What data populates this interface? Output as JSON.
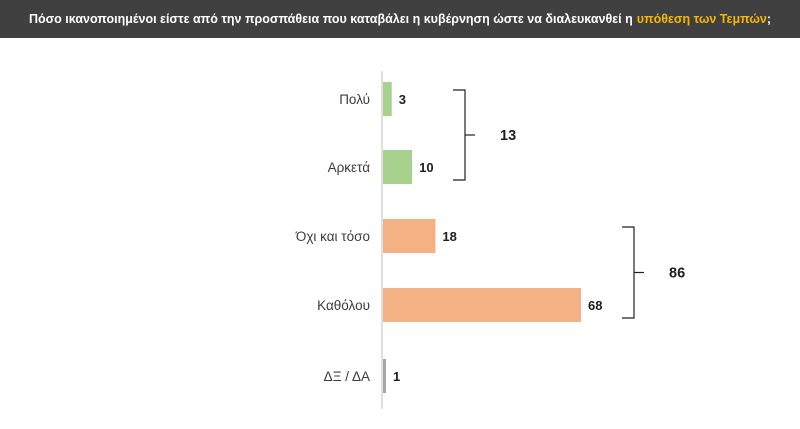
{
  "header": {
    "title_main": "Πόσο ικανοποιημένοι είστε από την προσπάθεια που καταβάλει η κυβέρνηση ώστε να διαλευκανθεί η",
    "title_highlight": "υπόθεση των Τεμπών",
    "title_end": ";"
  },
  "colors": {
    "header_bg": "#404040",
    "highlight": "#f5b700",
    "positive": "#a9d18e",
    "negative": "#f4b183",
    "neutral": "#a6a6a6",
    "axis": "#bfbfbf",
    "bracket": "#222222"
  },
  "chart_data": {
    "type": "bar",
    "orientation": "horizontal",
    "categories": [
      "Πολύ",
      "Αρκετά",
      "Όχι και τόσο",
      "Καθόλου",
      "ΔΞ / ΔΑ"
    ],
    "values": [
      3,
      10,
      18,
      68,
      1
    ],
    "value_labels": [
      "3",
      "10",
      "18",
      "68",
      "1"
    ],
    "bar_colors": [
      "positive",
      "positive",
      "negative",
      "negative",
      "neutral"
    ],
    "xlim": [
      0,
      68
    ],
    "grid": false,
    "groups": [
      {
        "label": "13",
        "from": 0,
        "to": 1
      },
      {
        "label": "86",
        "from": 2,
        "to": 3
      }
    ]
  }
}
